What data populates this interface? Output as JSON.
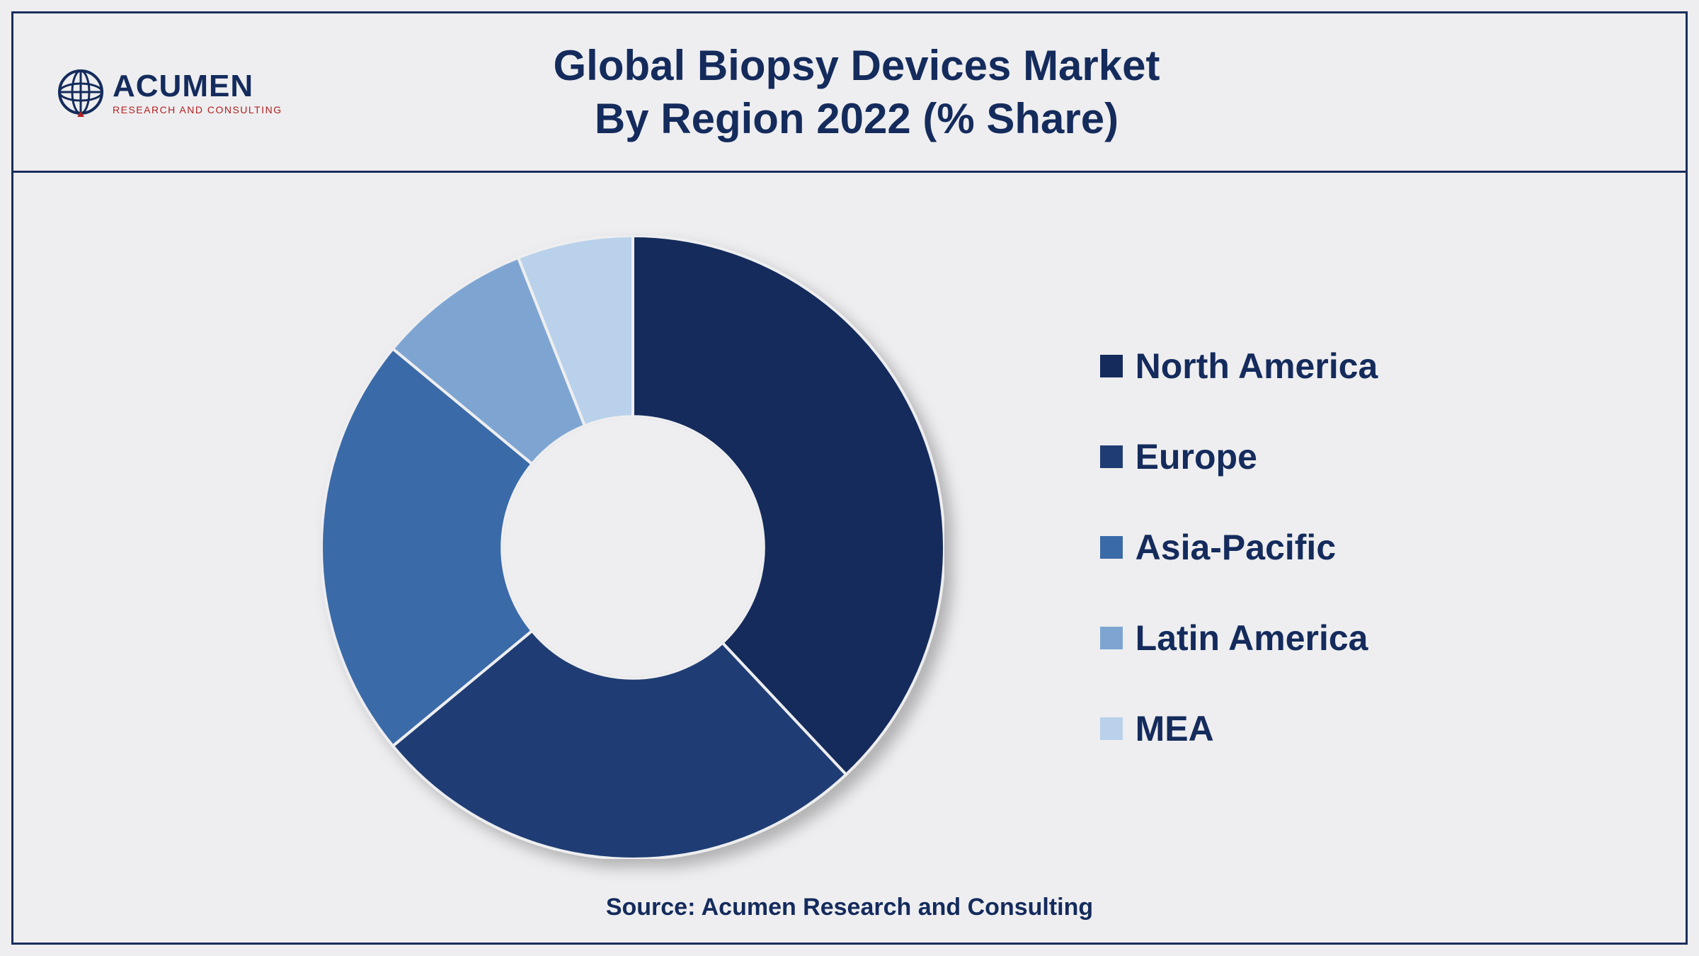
{
  "header": {
    "logo": {
      "main_text": "ACUMEN",
      "sub_text": "RESEARCH AND CONSULTING",
      "color_primary": "#142b5c",
      "color_accent": "#b4201f"
    },
    "title_line1": "Global Biopsy Devices Market",
    "title_line2": "By Region 2022 (% Share)",
    "title_color": "#142b5c"
  },
  "chart": {
    "type": "donut",
    "background_color": "#eeeef0",
    "border_color": "#1a2e5c",
    "inner_radius_ratio": 0.42,
    "outer_radius": 440,
    "shadow_color": "rgba(0,0,0,0.25)",
    "slices": [
      {
        "label": "North America",
        "value": 38,
        "color": "#142b5c"
      },
      {
        "label": "Europe",
        "value": 26,
        "color": "#1f3d74"
      },
      {
        "label": "Asia-Pacific",
        "value": 22,
        "color": "#3b6aa8"
      },
      {
        "label": "Latin America",
        "value": 8,
        "color": "#7ea5d2"
      },
      {
        "label": "MEA",
        "value": 6,
        "color": "#b9d1ea"
      }
    ],
    "start_angle_deg": -90,
    "slice_gap_color": "#eeeef0",
    "slice_gap_width": 4
  },
  "legend": {
    "font_size": 50,
    "font_weight": "bold",
    "text_color": "#142b5c",
    "marker_size": 32,
    "items": [
      {
        "label": "North America",
        "color": "#142b5c"
      },
      {
        "label": "Europe",
        "color": "#1f3d74"
      },
      {
        "label": "Asia-Pacific",
        "color": "#3b6aa8"
      },
      {
        "label": "Latin America",
        "color": "#7ea5d2"
      },
      {
        "label": "MEA",
        "color": "#b9d1ea"
      }
    ]
  },
  "source": {
    "text": "Source: Acumen Research and Consulting",
    "color": "#142b5c"
  }
}
